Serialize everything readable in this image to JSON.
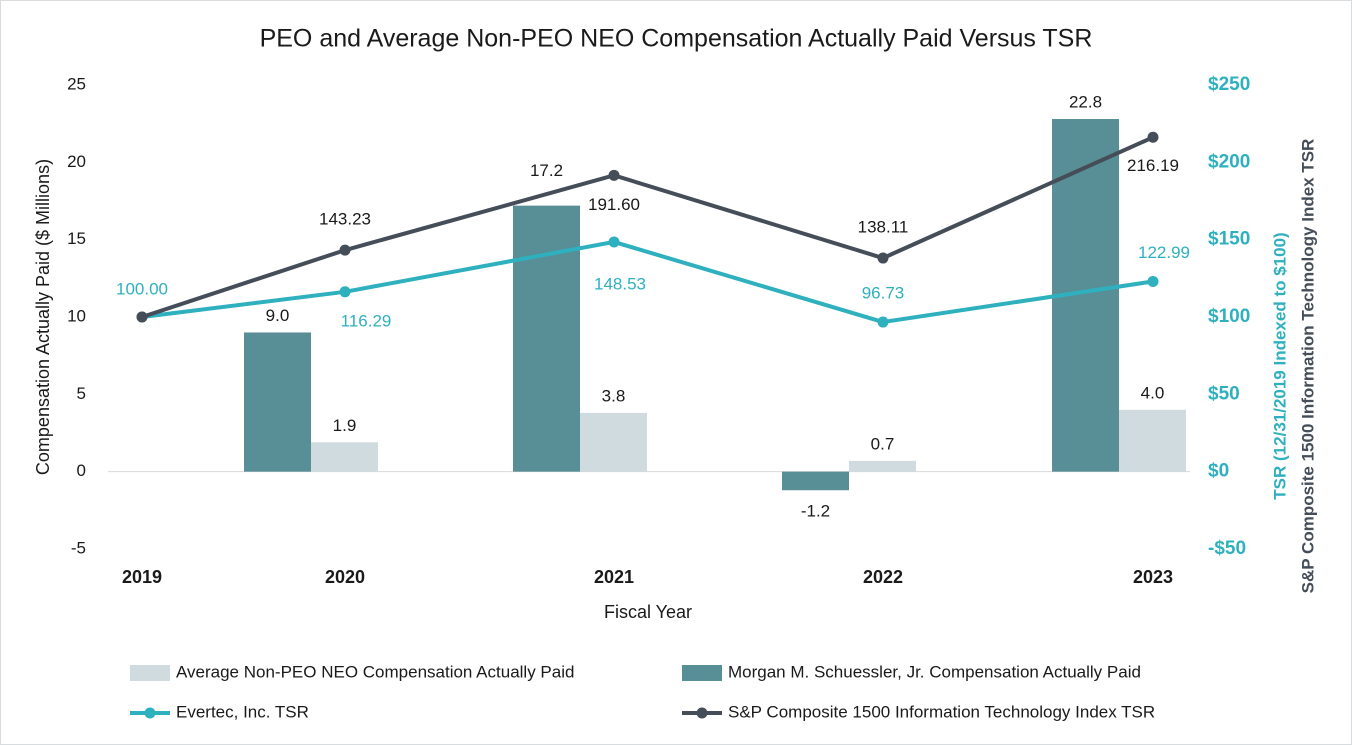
{
  "chart_data": {
    "type": "bar",
    "title": "PEO and Average Non-PEO NEO Compensation Actually Paid Versus TSR",
    "x_label": "Fiscal Year",
    "y_label": "Compensation Actually Paid ($ Millions)",
    "y2_labels": [
      "TSR (12/31/2019 Indexed to $100)",
      "S&P Composite 1500 Information Technology Index TSR"
    ],
    "categories": [
      "2019",
      "2020",
      "2021",
      "2022",
      "2023"
    ],
    "ylim": [
      -5,
      25
    ],
    "yticks": [
      -5,
      0,
      5,
      10,
      15,
      20,
      25
    ],
    "y2lim": [
      -50,
      250
    ],
    "y2ticks": [
      {
        "value": -50,
        "label": "-$50"
      },
      {
        "value": 0,
        "label": "$0"
      },
      {
        "value": 50,
        "label": "$50"
      },
      {
        "value": 100,
        "label": "$100"
      },
      {
        "value": 150,
        "label": "$150"
      },
      {
        "value": 200,
        "label": "$200"
      },
      {
        "value": 250,
        "label": "$250"
      }
    ],
    "grid": false,
    "legend": "bottom",
    "series": [
      {
        "name": "Average Non-PEO NEO Compensation Actually Paid",
        "type": "bar",
        "color": "#cfdbdf",
        "values": [
          null,
          1.9,
          3.8,
          0.7,
          4.0
        ],
        "value_labels": [
          null,
          "1.9",
          "3.8",
          "0.7",
          "4.0"
        ]
      },
      {
        "name": "Morgan M. Schuessler, Jr. Compensation Actually Paid",
        "type": "bar",
        "color": "#588e95",
        "values": [
          null,
          9.0,
          17.2,
          -1.2,
          22.8
        ],
        "value_labels": [
          null,
          "9.0",
          "17.2",
          "-1.2",
          "22.8"
        ]
      },
      {
        "name": "Evertec, Inc. TSR",
        "type": "line",
        "axis": "y2",
        "color": "#2fb0bf",
        "values": [
          100.0,
          116.29,
          148.53,
          96.73,
          122.99
        ],
        "value_labels": [
          "100.00",
          "116.29",
          "148.53",
          "96.73",
          "122.99"
        ]
      },
      {
        "name": "S&P Composite 1500 Information Technology Index TSR",
        "type": "line",
        "axis": "y2",
        "color": "#454e58",
        "values": [
          100.0,
          143.23,
          191.6,
          138.11,
          216.19
        ],
        "value_labels": [
          null,
          "143.23",
          "191.60",
          "138.11",
          "216.19"
        ]
      }
    ]
  }
}
